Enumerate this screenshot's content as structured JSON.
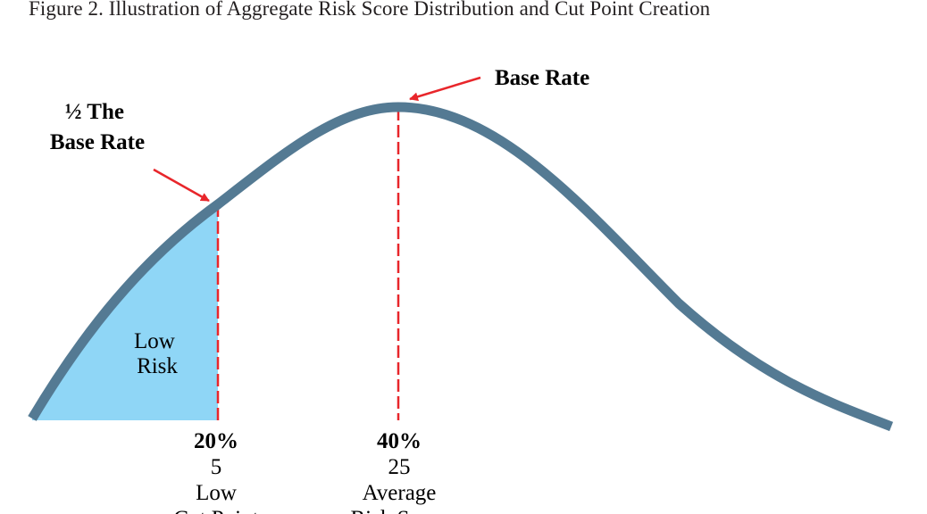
{
  "figure": {
    "title": "Figure 2. Illustration of Aggregate Risk Score Distribution and Cut Point Creation"
  },
  "callouts": {
    "half_base_rate": [
      "½ The",
      "Base Rate"
    ],
    "base_rate": "Base Rate"
  },
  "shaded_region": {
    "label": [
      "Low",
      "Risk"
    ]
  },
  "markers": [
    {
      "percent": "20%",
      "score": "5",
      "label": [
        "Low",
        "Cut Point"
      ]
    },
    {
      "percent": "40%",
      "score": "25",
      "label": [
        "Average",
        "Risk Score"
      ]
    }
  ],
  "colors": {
    "curve": "#547a93",
    "shade": "#8fd6f6",
    "marker_line": "#e8262b",
    "arrow": "#e8262b",
    "text": "#231f20"
  }
}
